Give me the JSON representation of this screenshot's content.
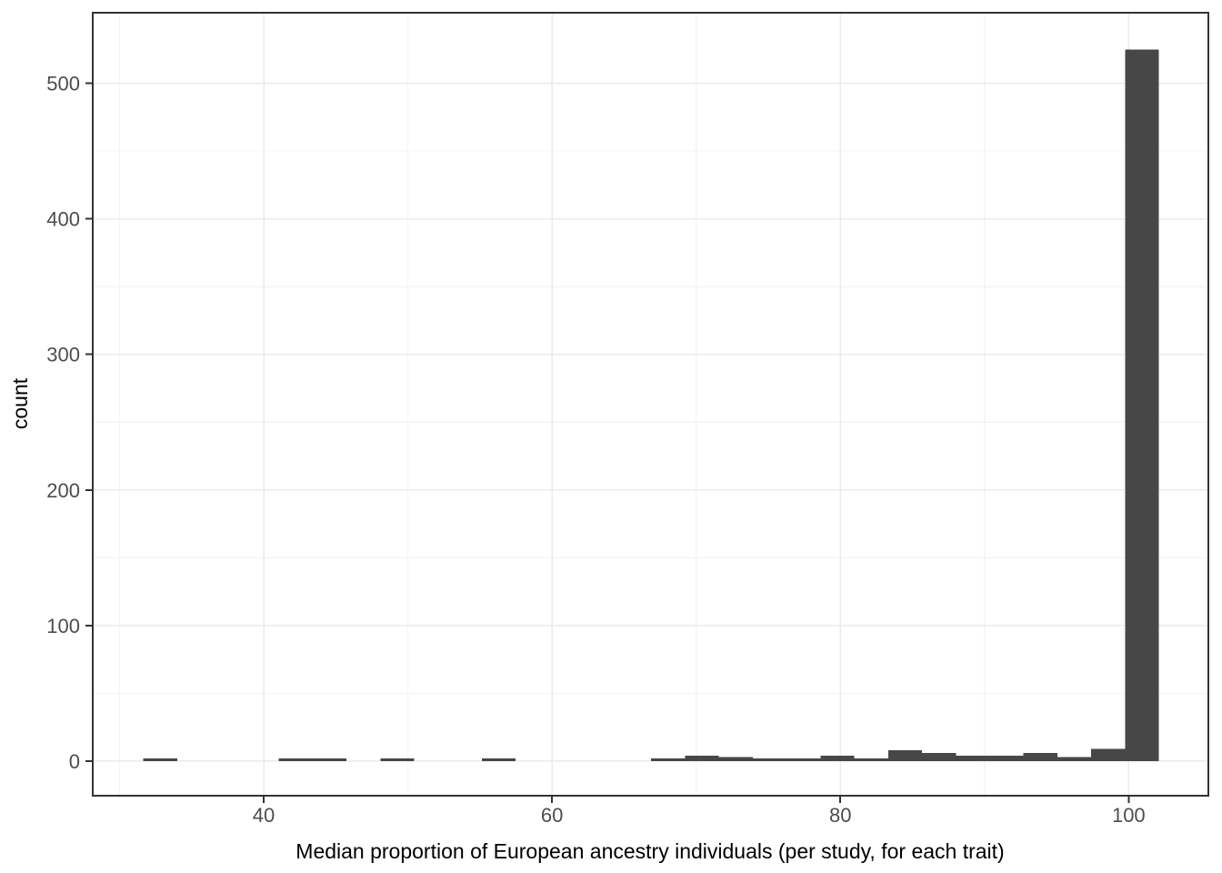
{
  "figure": {
    "background": "#ffffff"
  },
  "chart_data": {
    "type": "bar",
    "subtype": "histogram",
    "title": "",
    "xlabel": "Median proportion of European ancestry individuals (per study, for each trait)",
    "ylabel": "count",
    "bin_width": 2.348,
    "bin_centers": [
      32.83,
      35.18,
      37.53,
      39.88,
      42.22,
      44.57,
      46.92,
      49.27,
      51.62,
      53.96,
      56.31,
      58.66,
      61.01,
      63.36,
      65.7,
      68.05,
      70.4,
      72.75,
      75.1,
      77.44,
      79.79,
      82.14,
      84.49,
      86.84,
      89.18,
      91.53,
      93.88,
      96.23,
      98.58,
      100.92
    ],
    "counts": [
      2,
      0,
      0,
      0,
      2,
      2,
      0,
      2,
      0,
      0,
      2,
      0,
      0,
      0,
      0,
      2,
      4,
      3,
      2,
      2,
      4,
      2,
      8,
      6,
      4,
      4,
      6,
      3,
      9,
      525
    ],
    "x_ticks": [
      40,
      60,
      80,
      100
    ],
    "x_minor_ticks": [
      30,
      50,
      70,
      90
    ],
    "y_ticks": [
      0,
      100,
      200,
      300,
      400,
      500
    ],
    "y_minor_ticks": [
      50,
      150,
      250,
      350,
      450
    ],
    "xlim": [
      28.14,
      105.53
    ],
    "ylim": [
      -25.5,
      552
    ],
    "grid": true,
    "legend_position": "none",
    "colors": {
      "bar_fill": "#474747",
      "panel_border": "#333333",
      "grid_major": "#ebebeb",
      "grid_minor": "#f4f4f4",
      "tick_mark": "#333333",
      "tick_label": "#4d4d4d",
      "axis_title": "#000000",
      "background": "#ffffff"
    }
  }
}
